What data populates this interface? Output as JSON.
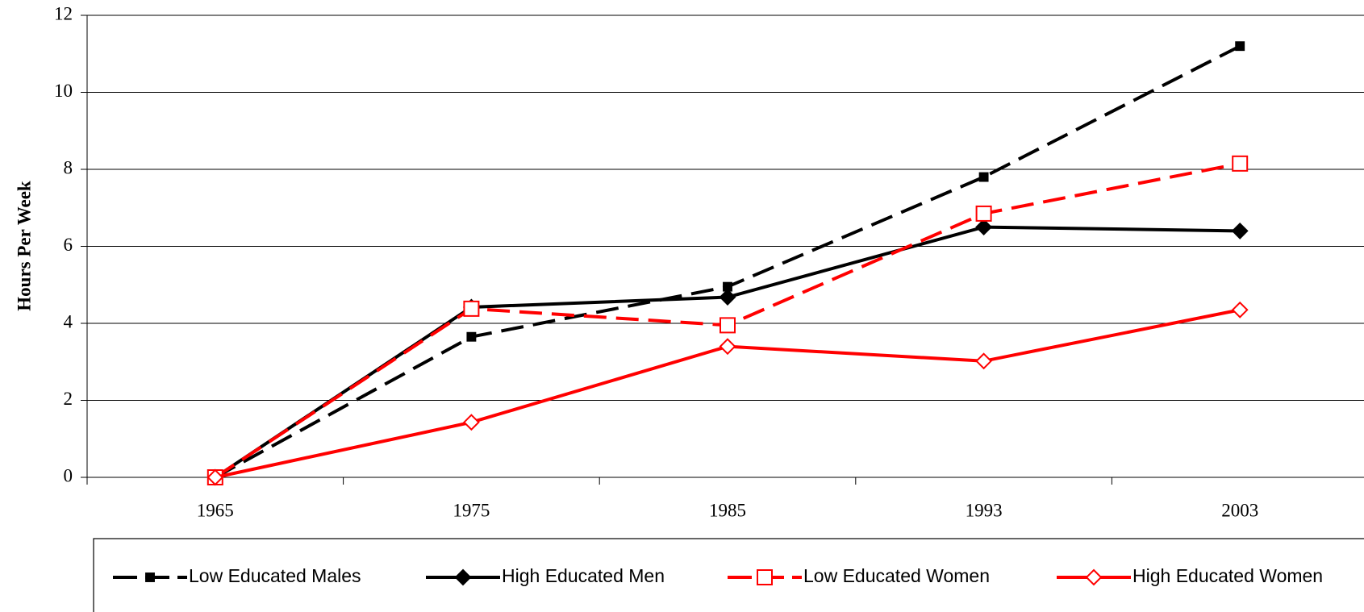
{
  "chart_data": {
    "type": "line",
    "ylabel": "Hours Per Week",
    "categories": [
      "1965",
      "1975",
      "1985",
      "1993",
      "2003"
    ],
    "series": [
      {
        "name": "Low Educated Males",
        "color": "#000000",
        "dashed": true,
        "marker": "square",
        "filled": true,
        "values": [
          0,
          3.65,
          4.95,
          7.8,
          11.2
        ]
      },
      {
        "name": "High Educated Men",
        "color": "#000000",
        "dashed": false,
        "marker": "diamond",
        "filled": true,
        "values": [
          0,
          4.42,
          4.68,
          6.5,
          6.4
        ]
      },
      {
        "name": "Low Educated Women",
        "color": "#ff0000",
        "dashed": true,
        "marker": "square",
        "filled": false,
        "values": [
          0,
          4.38,
          3.95,
          6.85,
          8.15
        ]
      },
      {
        "name": "High Educated Women",
        "color": "#ff0000",
        "dashed": false,
        "marker": "diamond",
        "filled": false,
        "values": [
          0,
          1.43,
          3.4,
          3.02,
          4.35
        ]
      }
    ],
    "ylim": [
      0,
      12
    ],
    "yticks": [
      0,
      2,
      4,
      6,
      8,
      10,
      12
    ],
    "grid": true,
    "legend": "bottom"
  }
}
